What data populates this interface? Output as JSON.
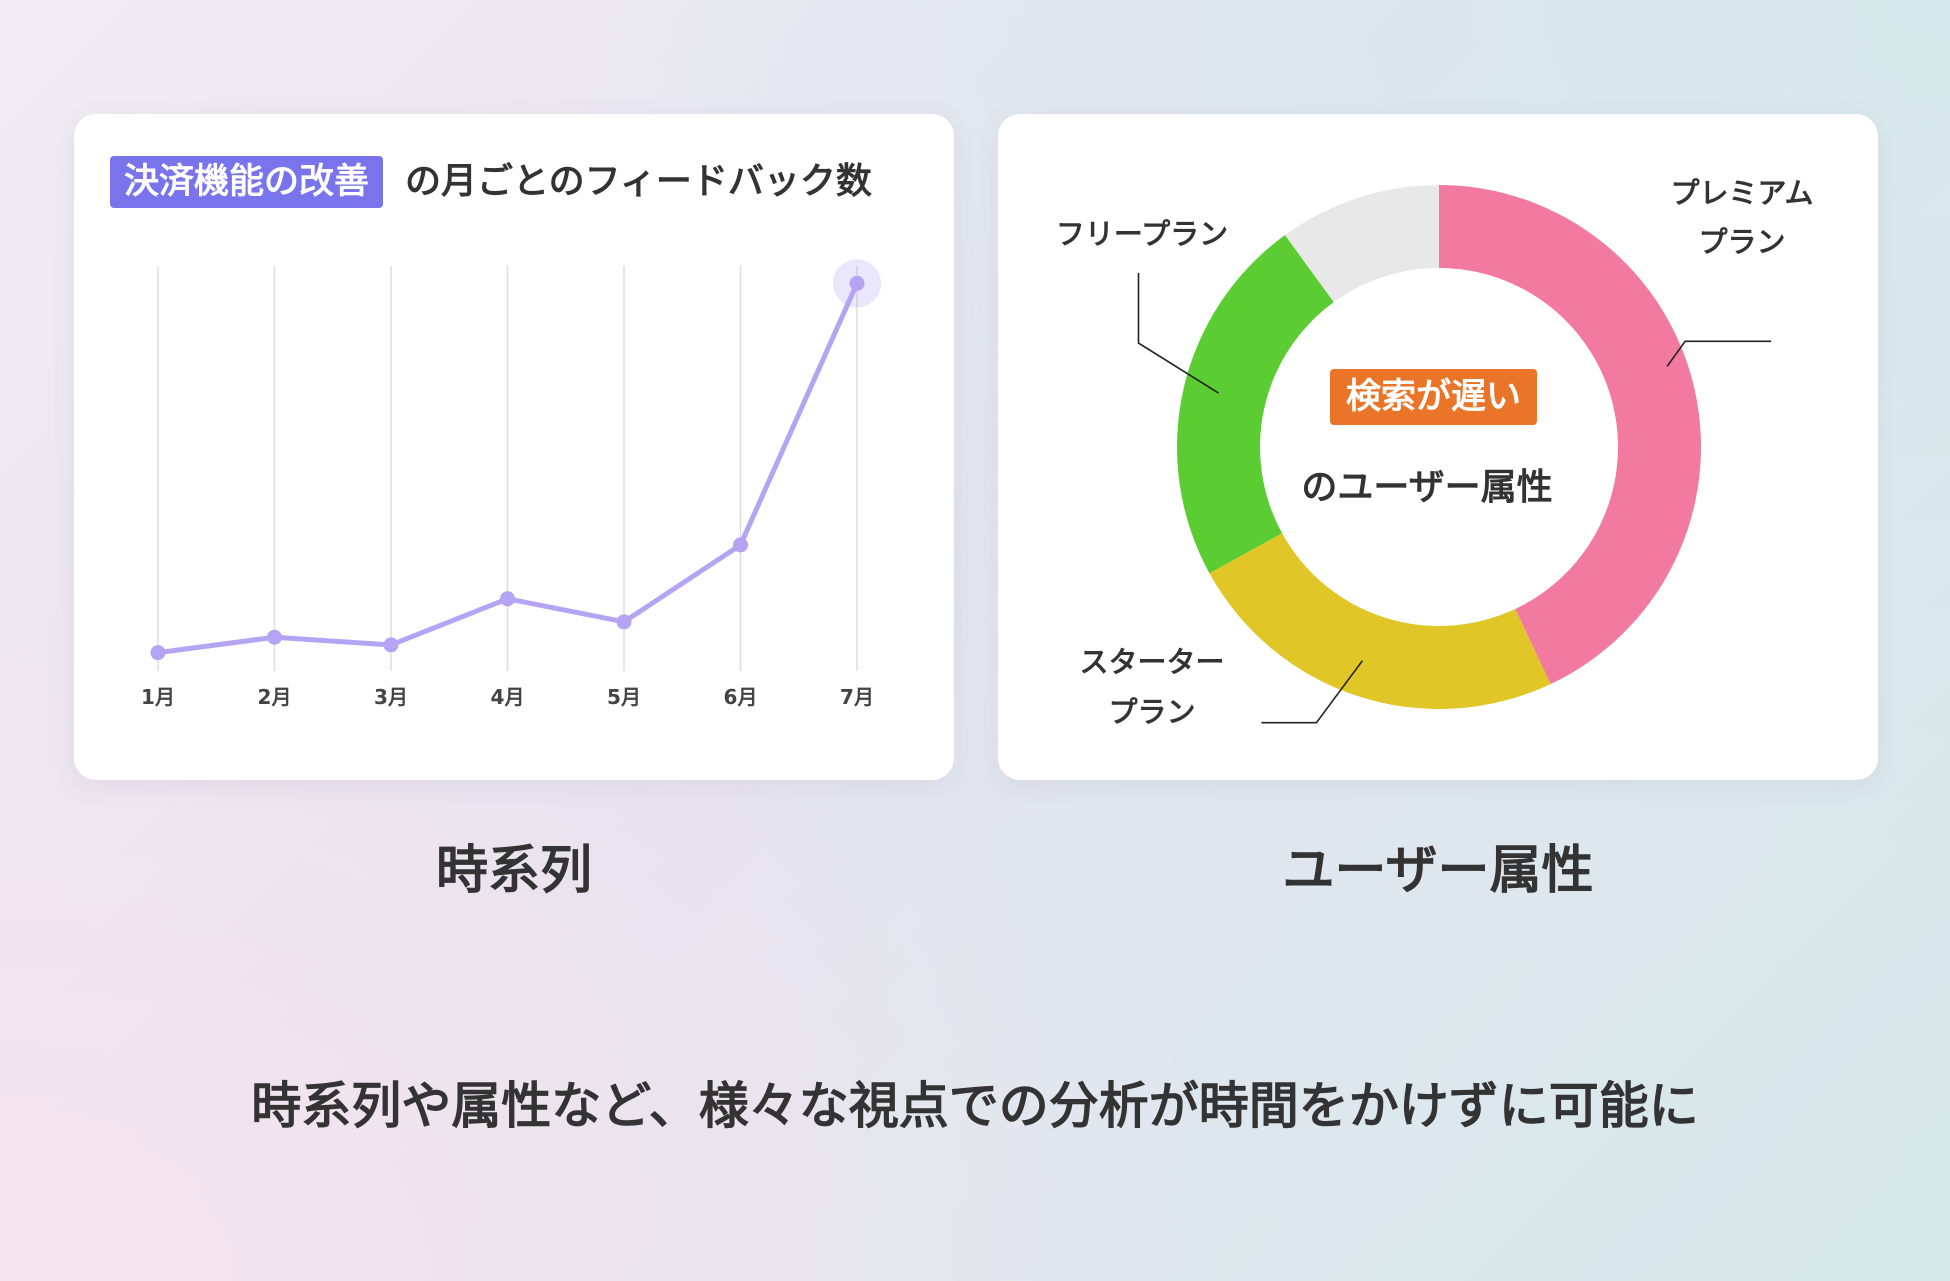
{
  "line_card": {
    "badge": "決済機能の改善",
    "title_rest": "の月ごとのフィードバック数"
  },
  "donut_card": {
    "center_badge": "検索が遅い",
    "center_label": "のユーザー属性"
  },
  "captions": {
    "left": "時系列",
    "right": "ユーザー属性"
  },
  "footer": "時系列や属性など、様々な視点での分析が時間をかけずに可能に",
  "colors": {
    "line": "#b3a5f3",
    "badge_purple": "#7a74ec",
    "badge_orange": "#ea7427",
    "premium": "#f27aa0",
    "starter": "#e0c627",
    "free": "#5bcd32",
    "other": "#e8e8e8"
  },
  "chart_data": [
    {
      "type": "line",
      "title": "決済機能の改善の月ごとのフィードバック数",
      "categories": [
        "1月",
        "2月",
        "3月",
        "4月",
        "5月",
        "6月",
        "7月"
      ],
      "series": [
        {
          "values": [
            2,
            4,
            3,
            9,
            6,
            16,
            50
          ]
        }
      ],
      "ylim": [
        0,
        52
      ],
      "grid": "vertical",
      "highlight_last": true
    },
    {
      "type": "pie",
      "title": "検索が遅いのユーザー属性",
      "labels": [
        "プレミアムプラン",
        "スタータープラン",
        "フリープラン",
        ""
      ],
      "label_lines": [
        [
          "プレミアム",
          "プラン"
        ],
        [
          "スターター",
          "プラン"
        ],
        [
          "フリープラン"
        ],
        []
      ],
      "values": [
        43,
        24,
        23,
        10
      ],
      "colors": [
        "#f27aa0",
        "#e0c627",
        "#5bcd32",
        "#e8e8e8"
      ],
      "donut": true
    }
  ]
}
